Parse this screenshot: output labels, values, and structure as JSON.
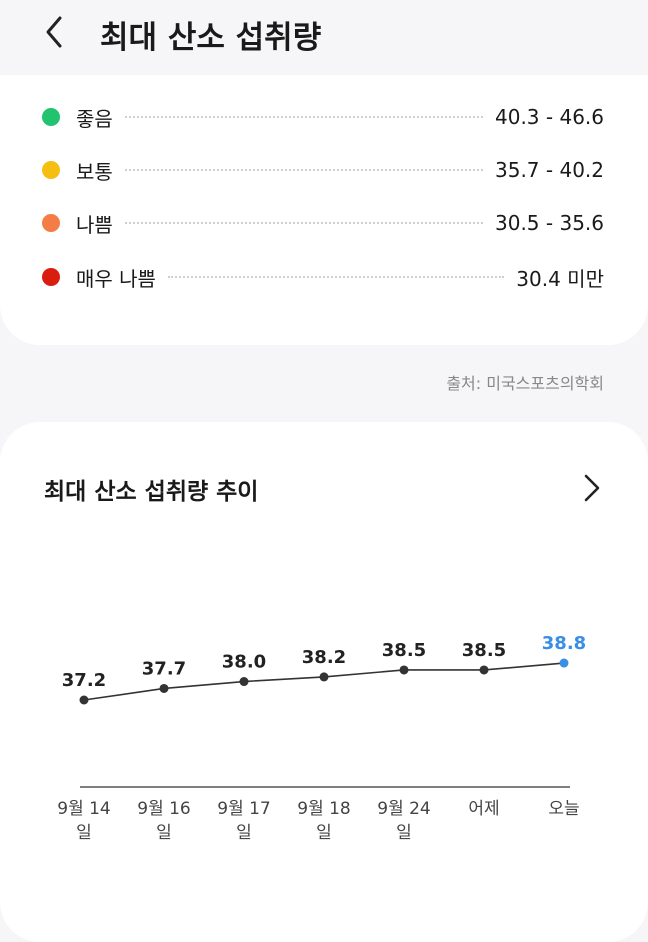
{
  "header": {
    "title": "최대 산소 섭취량"
  },
  "ranges": [
    {
      "label": "좋음",
      "range": "40.3 - 46.6",
      "color": "#22c36f"
    },
    {
      "label": "보통",
      "range": "35.7 - 40.2",
      "color": "#f5be10"
    },
    {
      "label": "나쁨",
      "range": "30.5 - 35.6",
      "color": "#f47c45"
    },
    {
      "label": "매우 나쁨",
      "range": "30.4 미만",
      "color": "#d91e10"
    }
  ],
  "source": "출처: 미국스포츠의학회",
  "chart_data": {
    "type": "line",
    "title": "최대 산소 섭취량 추이",
    "categories": [
      "9월 14일",
      "9월 16일",
      "9월 17일",
      "9월 18일",
      "9월 24일",
      "어제",
      "오늘"
    ],
    "values": [
      37.2,
      37.7,
      38.0,
      38.2,
      38.5,
      38.5,
      38.8
    ],
    "value_labels": [
      "37.2",
      "37.7",
      "38.0",
      "38.2",
      "38.5",
      "38.5",
      "38.8"
    ],
    "color": "#333333",
    "last_color": "#3a8ee6"
  }
}
